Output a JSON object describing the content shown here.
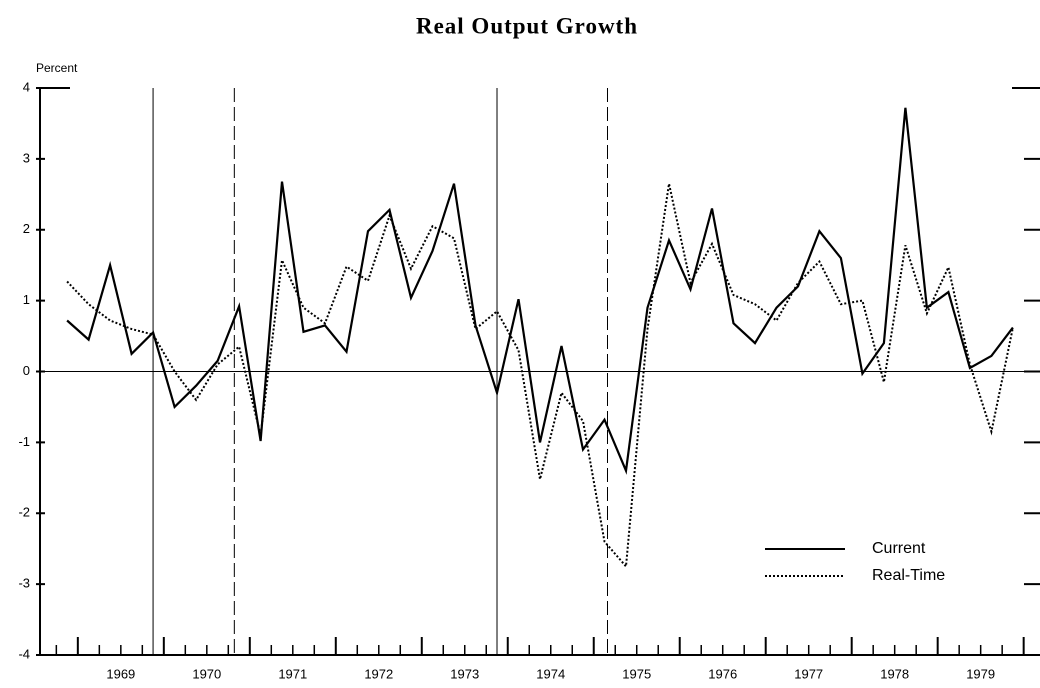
{
  "chart_data": {
    "type": "line",
    "title": "Real Output Growth",
    "y_label": "Percent",
    "x": [
      1968.875,
      1969.125,
      1969.375,
      1969.625,
      1969.875,
      1970.125,
      1970.375,
      1970.625,
      1970.875,
      1971.125,
      1971.375,
      1971.625,
      1971.875,
      1972.125,
      1972.375,
      1972.625,
      1972.875,
      1973.125,
      1973.375,
      1973.625,
      1973.875,
      1974.125,
      1974.375,
      1974.625,
      1974.875,
      1975.125,
      1975.375,
      1975.625,
      1975.875,
      1976.125,
      1976.375,
      1976.625,
      1976.875,
      1977.125,
      1977.375,
      1977.625,
      1977.875,
      1978.125,
      1978.375,
      1978.625,
      1978.875,
      1979.125,
      1979.375,
      1979.625,
      1979.875
    ],
    "series": [
      {
        "name": "Current",
        "color": "#000000",
        "dash": "solid",
        "values": [
          0.72,
          0.45,
          1.5,
          0.25,
          0.55,
          -0.5,
          -0.2,
          0.15,
          0.92,
          -0.98,
          2.68,
          0.56,
          0.65,
          0.28,
          1.98,
          2.28,
          1.04,
          1.7,
          2.65,
          0.65,
          -0.3,
          1.02,
          -1.0,
          0.36,
          -1.1,
          -0.68,
          -1.4,
          0.9,
          1.85,
          1.16,
          2.3,
          0.68,
          0.4,
          0.9,
          1.2,
          1.98,
          1.6,
          -0.03,
          0.4,
          3.72,
          0.9,
          1.12,
          0.05,
          0.22,
          0.62
        ]
      },
      {
        "name": "Real-Time",
        "color": "#000000",
        "dash": "dotted",
        "values": [
          1.27,
          0.95,
          0.72,
          0.6,
          0.52,
          0.0,
          -0.4,
          0.1,
          0.35,
          -0.9,
          1.57,
          0.9,
          0.68,
          1.48,
          1.28,
          2.2,
          1.45,
          2.05,
          1.88,
          0.6,
          0.85,
          0.3,
          -1.52,
          -0.3,
          -0.7,
          -2.4,
          -2.75,
          0.6,
          2.65,
          1.25,
          1.8,
          1.08,
          0.95,
          0.72,
          1.25,
          1.55,
          0.95,
          1.0,
          -0.15,
          1.78,
          0.82,
          1.47,
          0.1,
          -0.85,
          0.62
        ]
      }
    ],
    "xlim": [
      1968.56,
      1980.19
    ],
    "xticks": [
      {
        "value": 1969,
        "label": "1969"
      },
      {
        "value": 1970,
        "label": "1970"
      },
      {
        "value": 1971,
        "label": "1971"
      },
      {
        "value": 1972,
        "label": "1972"
      },
      {
        "value": 1973,
        "label": "1973"
      },
      {
        "value": 1974,
        "label": "1974"
      },
      {
        "value": 1975,
        "label": "1975"
      },
      {
        "value": 1976,
        "label": "1976"
      },
      {
        "value": 1977,
        "label": "1977"
      },
      {
        "value": 1978,
        "label": "1978"
      },
      {
        "value": 1979,
        "label": "1979"
      },
      {
        "value": 1980,
        "label": ""
      }
    ],
    "ylim": [
      -4,
      4
    ],
    "yticks": [
      -4,
      -3,
      -2,
      -1,
      0,
      1,
      2,
      3,
      4
    ],
    "hlines": [
      0
    ],
    "solid_vlines": [
      1969.875,
      1973.875
    ],
    "dashed_vlines": [
      1970.82,
      1975.16
    ],
    "legend": "lower right"
  }
}
